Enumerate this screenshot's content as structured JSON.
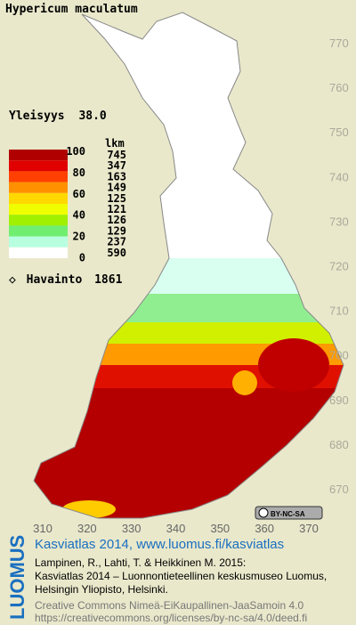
{
  "title": "Hypericum maculatum",
  "frequency": {
    "label": "Yleisyys",
    "value": "38.0"
  },
  "legend": {
    "scale_labels": [
      "100",
      "80",
      "60",
      "40",
      "20",
      "0"
    ],
    "count_header": "lkm",
    "counts": [
      745,
      347,
      163,
      149,
      125,
      121,
      126,
      129,
      237,
      590
    ],
    "colors": [
      "#b00000",
      "#e00000",
      "#ff4000",
      "#ff9000",
      "#ffd800",
      "#f0ff00",
      "#a0f000",
      "#70ee70",
      "#b8ffe0",
      "#ffffff"
    ]
  },
  "observations": {
    "label": "Havainto",
    "count": 1861
  },
  "axes": {
    "y_ticks": [
      770,
      760,
      750,
      740,
      730,
      720,
      710,
      700,
      690,
      680,
      670
    ],
    "x_ticks": [
      310,
      320,
      330,
      340,
      350,
      360,
      370
    ]
  },
  "license_badge": "BY-NC-SA",
  "footer": {
    "brand": "LUOMUS",
    "heading": "Kasviatlas 2014, www.luomus.fi/kasviatlas",
    "citation": [
      "Lampinen, R., Lahti, T. & Heikkinen M. 2015:",
      "Kasviatlas 2014 – Luonnontieteellinen keskusmuseo Luomus,",
      "Helsingin Yliopisto, Helsinki."
    ],
    "license": [
      "Creative Commons Nimeä-EiKaupallinen-JaaSamoin 4.0",
      "https://creativecommons.org/licenses/by-nc-sa/4.0/deed.fi"
    ]
  }
}
